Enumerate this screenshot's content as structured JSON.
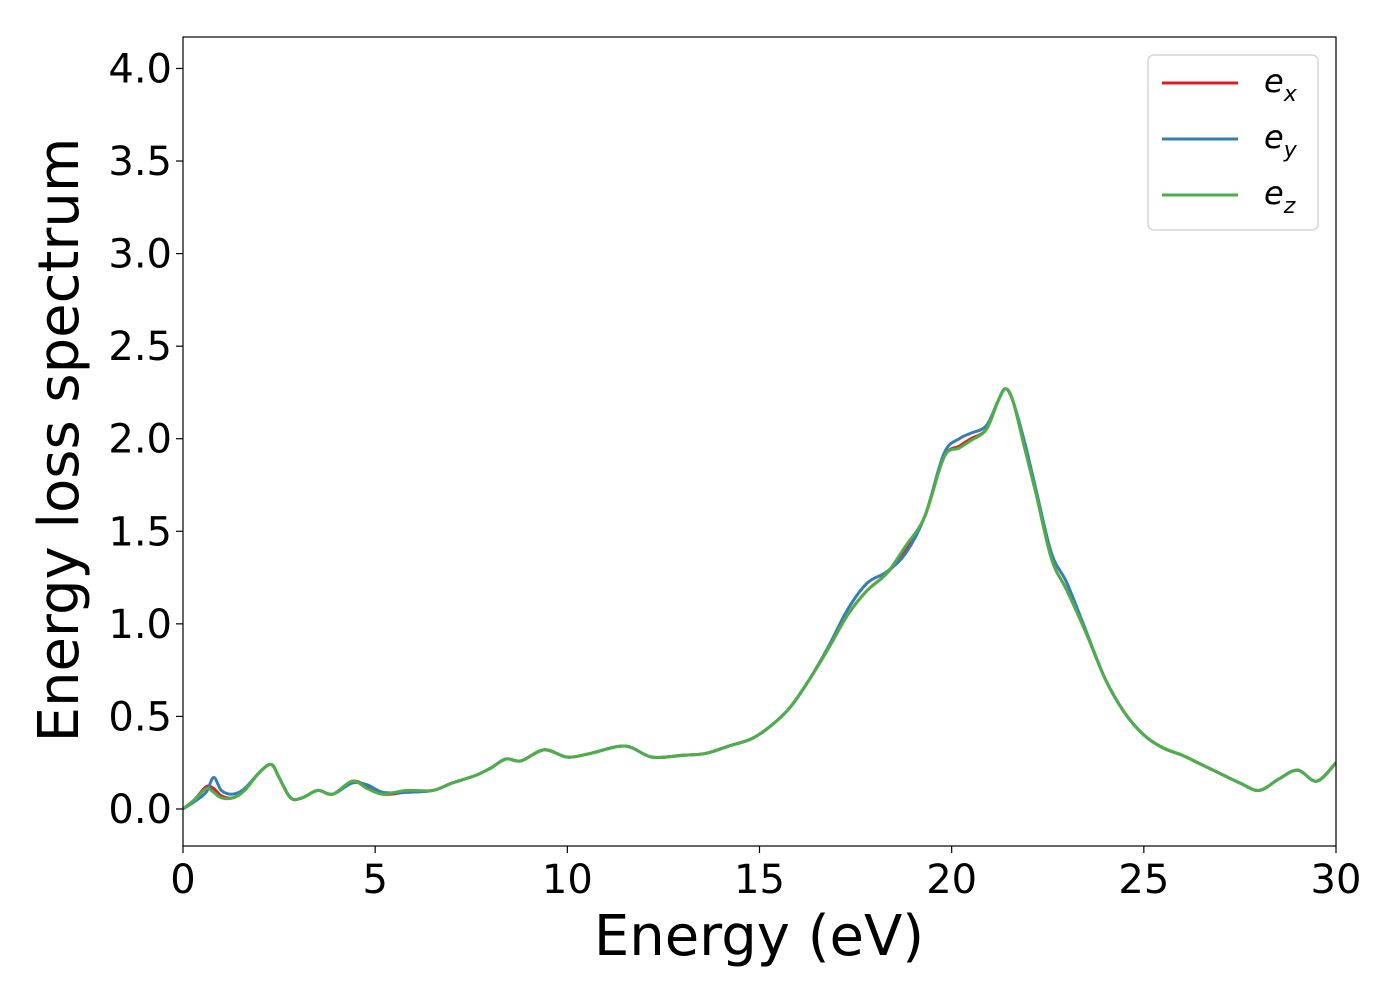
{
  "chart_data": {
    "type": "line",
    "title": "",
    "xlabel": "Energy (eV)",
    "ylabel": "Energy loss spectrum",
    "xlim": [
      0,
      30
    ],
    "ylim": [
      -0.2,
      4.17
    ],
    "xticks": [
      0,
      5,
      10,
      15,
      20,
      25,
      30
    ],
    "xtick_labels": [
      "0",
      "5",
      "10",
      "15",
      "20",
      "25",
      "30"
    ],
    "yticks": [
      0.0,
      0.5,
      1.0,
      1.5,
      2.0,
      2.5,
      3.0,
      3.5,
      4.0
    ],
    "ytick_labels": [
      "0.0",
      "0.5",
      "1.0",
      "1.5",
      "2.0",
      "2.5",
      "3.0",
      "3.5",
      "4.0"
    ],
    "grid": false,
    "legend_position": "top-right",
    "series": [
      {
        "name": "e_x",
        "legend_base": "e",
        "legend_sub": "x",
        "color": "#e41a1c",
        "x": [
          0,
          0.3,
          0.6,
          0.8,
          1.0,
          1.3,
          1.6,
          2.0,
          2.3,
          2.5,
          2.8,
          3.1,
          3.5,
          3.9,
          4.4,
          4.8,
          5.2,
          5.8,
          6.5,
          7.0,
          7.6,
          8.0,
          8.4,
          8.8,
          9.4,
          10.0,
          10.6,
          11.5,
          12.2,
          13.0,
          13.6,
          14.2,
          14.8,
          15.3,
          15.8,
          16.3,
          16.8,
          17.3,
          17.8,
          18.3,
          18.8,
          19.3,
          19.8,
          20.2,
          20.5,
          20.9,
          21.2,
          21.4,
          21.6,
          21.9,
          22.2,
          22.6,
          23.0,
          23.5,
          24.0,
          24.5,
          25.0,
          25.5,
          26.0,
          26.5,
          27.0,
          27.5,
          28.0,
          28.5,
          29.0,
          29.5,
          30.0
        ],
        "values": [
          0.0,
          0.05,
          0.12,
          0.11,
          0.07,
          0.06,
          0.1,
          0.2,
          0.24,
          0.17,
          0.06,
          0.06,
          0.1,
          0.08,
          0.15,
          0.12,
          0.08,
          0.09,
          0.1,
          0.14,
          0.18,
          0.22,
          0.27,
          0.26,
          0.32,
          0.28,
          0.3,
          0.34,
          0.28,
          0.29,
          0.3,
          0.34,
          0.38,
          0.45,
          0.55,
          0.7,
          0.87,
          1.05,
          1.18,
          1.27,
          1.4,
          1.58,
          1.9,
          1.96,
          2.0,
          2.05,
          2.2,
          2.27,
          2.2,
          1.95,
          1.7,
          1.35,
          1.18,
          0.95,
          0.7,
          0.52,
          0.4,
          0.33,
          0.29,
          0.24,
          0.19,
          0.14,
          0.1,
          0.16,
          0.21,
          0.15,
          0.25
        ]
      },
      {
        "name": "e_y",
        "legend_base": "e",
        "legend_sub": "y",
        "color": "#377eb8",
        "x": [
          0,
          0.3,
          0.6,
          0.8,
          1.0,
          1.3,
          1.6,
          2.0,
          2.3,
          2.5,
          2.8,
          3.1,
          3.5,
          3.9,
          4.4,
          4.8,
          5.2,
          5.8,
          6.5,
          7.0,
          7.6,
          8.0,
          8.4,
          8.8,
          9.4,
          10.0,
          10.6,
          11.5,
          12.2,
          13.0,
          13.6,
          14.2,
          14.8,
          15.3,
          15.8,
          16.3,
          16.8,
          17.3,
          17.8,
          18.3,
          18.8,
          19.3,
          19.8,
          20.2,
          20.5,
          20.9,
          21.2,
          21.4,
          21.6,
          21.9,
          22.2,
          22.6,
          23.0,
          23.5,
          24.0,
          24.5,
          25.0,
          25.5,
          26.0,
          26.5,
          27.0,
          27.5,
          28.0,
          28.5,
          29.0,
          29.5,
          30.0
        ],
        "values": [
          0.0,
          0.04,
          0.09,
          0.17,
          0.1,
          0.08,
          0.11,
          0.2,
          0.24,
          0.17,
          0.06,
          0.06,
          0.1,
          0.08,
          0.14,
          0.13,
          0.09,
          0.09,
          0.1,
          0.14,
          0.18,
          0.22,
          0.27,
          0.26,
          0.32,
          0.28,
          0.3,
          0.34,
          0.28,
          0.29,
          0.3,
          0.34,
          0.38,
          0.45,
          0.55,
          0.7,
          0.88,
          1.08,
          1.22,
          1.28,
          1.38,
          1.58,
          1.92,
          2.0,
          2.03,
          2.07,
          2.2,
          2.27,
          2.2,
          1.98,
          1.72,
          1.38,
          1.22,
          0.96,
          0.7,
          0.52,
          0.4,
          0.33,
          0.29,
          0.24,
          0.19,
          0.14,
          0.1,
          0.16,
          0.21,
          0.15,
          0.25
        ]
      },
      {
        "name": "e_z",
        "legend_base": "e",
        "legend_sub": "z",
        "color": "#4daf4a",
        "x": [
          0,
          0.3,
          0.6,
          0.8,
          1.0,
          1.3,
          1.6,
          2.0,
          2.3,
          2.5,
          2.8,
          3.1,
          3.5,
          3.9,
          4.4,
          4.8,
          5.2,
          5.8,
          6.5,
          7.0,
          7.6,
          8.0,
          8.4,
          8.8,
          9.4,
          10.0,
          10.6,
          11.5,
          12.2,
          13.0,
          13.6,
          14.2,
          14.8,
          15.3,
          15.8,
          16.3,
          16.8,
          17.3,
          17.8,
          18.3,
          18.8,
          19.3,
          19.8,
          20.2,
          20.5,
          20.9,
          21.2,
          21.4,
          21.6,
          21.9,
          22.2,
          22.6,
          23.0,
          23.5,
          24.0,
          24.5,
          25.0,
          25.5,
          26.0,
          26.5,
          27.0,
          27.5,
          28.0,
          28.5,
          29.0,
          29.5,
          30.0
        ],
        "values": [
          0.0,
          0.05,
          0.11,
          0.09,
          0.06,
          0.06,
          0.1,
          0.2,
          0.24,
          0.17,
          0.06,
          0.06,
          0.1,
          0.08,
          0.15,
          0.11,
          0.08,
          0.1,
          0.1,
          0.14,
          0.18,
          0.22,
          0.27,
          0.26,
          0.32,
          0.28,
          0.3,
          0.34,
          0.28,
          0.29,
          0.3,
          0.34,
          0.38,
          0.45,
          0.55,
          0.7,
          0.87,
          1.05,
          1.18,
          1.27,
          1.42,
          1.58,
          1.9,
          1.95,
          1.99,
          2.05,
          2.2,
          2.27,
          2.2,
          1.95,
          1.7,
          1.35,
          1.18,
          0.95,
          0.7,
          0.52,
          0.4,
          0.33,
          0.29,
          0.24,
          0.19,
          0.14,
          0.1,
          0.16,
          0.21,
          0.15,
          0.25
        ]
      }
    ]
  }
}
